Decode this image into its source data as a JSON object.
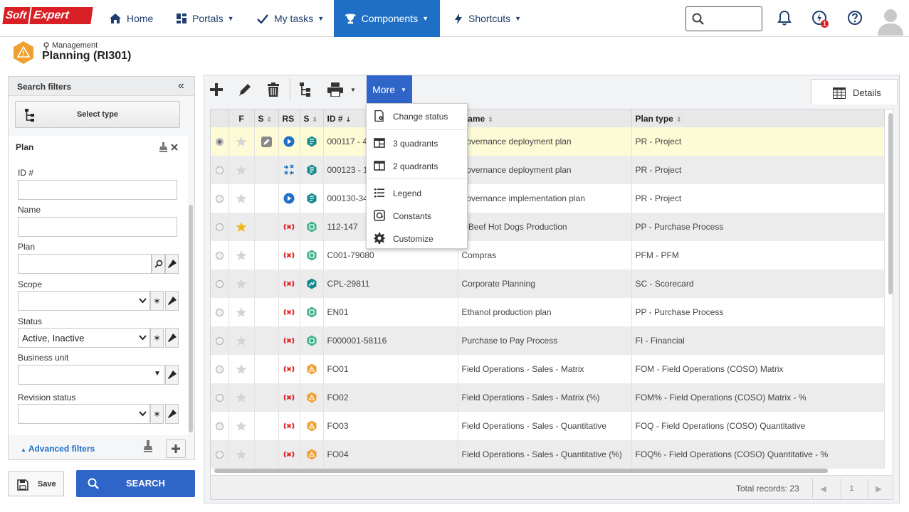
{
  "brand": {
    "logo_part1": "Soft",
    "logo_part2": "Expert",
    "accent": "#1e6fc5",
    "logo_color": "#d81f26"
  },
  "nav": {
    "home": "Home",
    "portals": "Portals",
    "my_tasks": "My tasks",
    "components": "Components",
    "shortcuts": "Shortcuts",
    "search_placeholder": "",
    "notification_badge": "1"
  },
  "header": {
    "breadcrumb": "Management",
    "title": "Planning (RI301)"
  },
  "filters": {
    "title": "Search filters",
    "select_type": "Select type",
    "section": "Plan",
    "id_label": "ID #",
    "name_label": "Name",
    "plan_label": "Plan",
    "scope_label": "Scope",
    "status_label": "Status",
    "status_value": "Active, Inactive",
    "business_unit_label": "Business unit",
    "revision_status_label": "Revision status",
    "advanced": "Advanced filters",
    "save": "Save",
    "search": "SEARCH"
  },
  "toolbar": {
    "more": "More",
    "details_tab": "Details"
  },
  "menu": {
    "change_status": "Change status",
    "three_quadrants": "3 quadrants",
    "two_quadrants": "2 quadrants",
    "legend": "Legend",
    "constants": "Constants",
    "customize": "Customize"
  },
  "grid": {
    "columns": [
      "F",
      "S",
      "RS",
      "S",
      "ID #",
      "Name",
      "Plan type"
    ],
    "rows": [
      {
        "id": "000117 - 4",
        "name": "governance deployment plan",
        "type": "PR - Project",
        "star": false,
        "status": "edit",
        "rs": "play",
        "s2": "teal"
      },
      {
        "id": "000123 - 1",
        "name": "governance deployment plan",
        "type": "PR - Project",
        "star": false,
        "status": "",
        "rs": "arrows",
        "s2": "teal"
      },
      {
        "id": "000130-34",
        "name": "governance implementation plan",
        "type": "PR - Project",
        "star": false,
        "status": "",
        "rs": "play",
        "s2": "teal"
      },
      {
        "id": "112-147",
        "name": "ll-Beef Hot Dogs Production",
        "type": "PP - Purchase Process",
        "star": true,
        "status": "",
        "rs": "red",
        "s2": "green"
      },
      {
        "id": "C001-79080",
        "name": "Compras",
        "type": "PFM - PFM",
        "star": false,
        "status": "",
        "rs": "red",
        "s2": "green"
      },
      {
        "id": "CPL-29811",
        "name": "Corporate Planning",
        "type": "SC - Scorecard",
        "star": false,
        "status": "",
        "rs": "red",
        "s2": "tealdark"
      },
      {
        "id": "EN01",
        "name": "Ethanol production plan",
        "type": "PP - Purchase Process",
        "star": false,
        "status": "",
        "rs": "red",
        "s2": "green"
      },
      {
        "id": "F000001-58116",
        "name": "Purchase to Pay Process",
        "type": "FI - Financial",
        "star": false,
        "status": "",
        "rs": "red",
        "s2": "green"
      },
      {
        "id": "FO01",
        "name": "Field Operations - Sales - Matrix",
        "type": "FOM - Field Operations (COSO) Matrix",
        "star": false,
        "status": "",
        "rs": "red",
        "s2": "orange"
      },
      {
        "id": "FO02",
        "name": "Field Operations - Sales - Matrix (%)",
        "type": "FOM% - Field Operations (COSO) Matrix - %",
        "star": false,
        "status": "",
        "rs": "red",
        "s2": "orange"
      },
      {
        "id": "FO03",
        "name": "Field Operations - Sales - Quantitative",
        "type": "FOQ - Field Operations (COSO) Quantitative",
        "star": false,
        "status": "",
        "rs": "red",
        "s2": "orange"
      },
      {
        "id": "FO04",
        "name": "Field Operations - Sales - Quantitative (%)",
        "type": "FOQ% - Field Operations (COSO) Quantitative - %",
        "star": false,
        "status": "",
        "rs": "red",
        "s2": "orange"
      }
    ],
    "total_records": "Total records: 23",
    "page": "1"
  }
}
